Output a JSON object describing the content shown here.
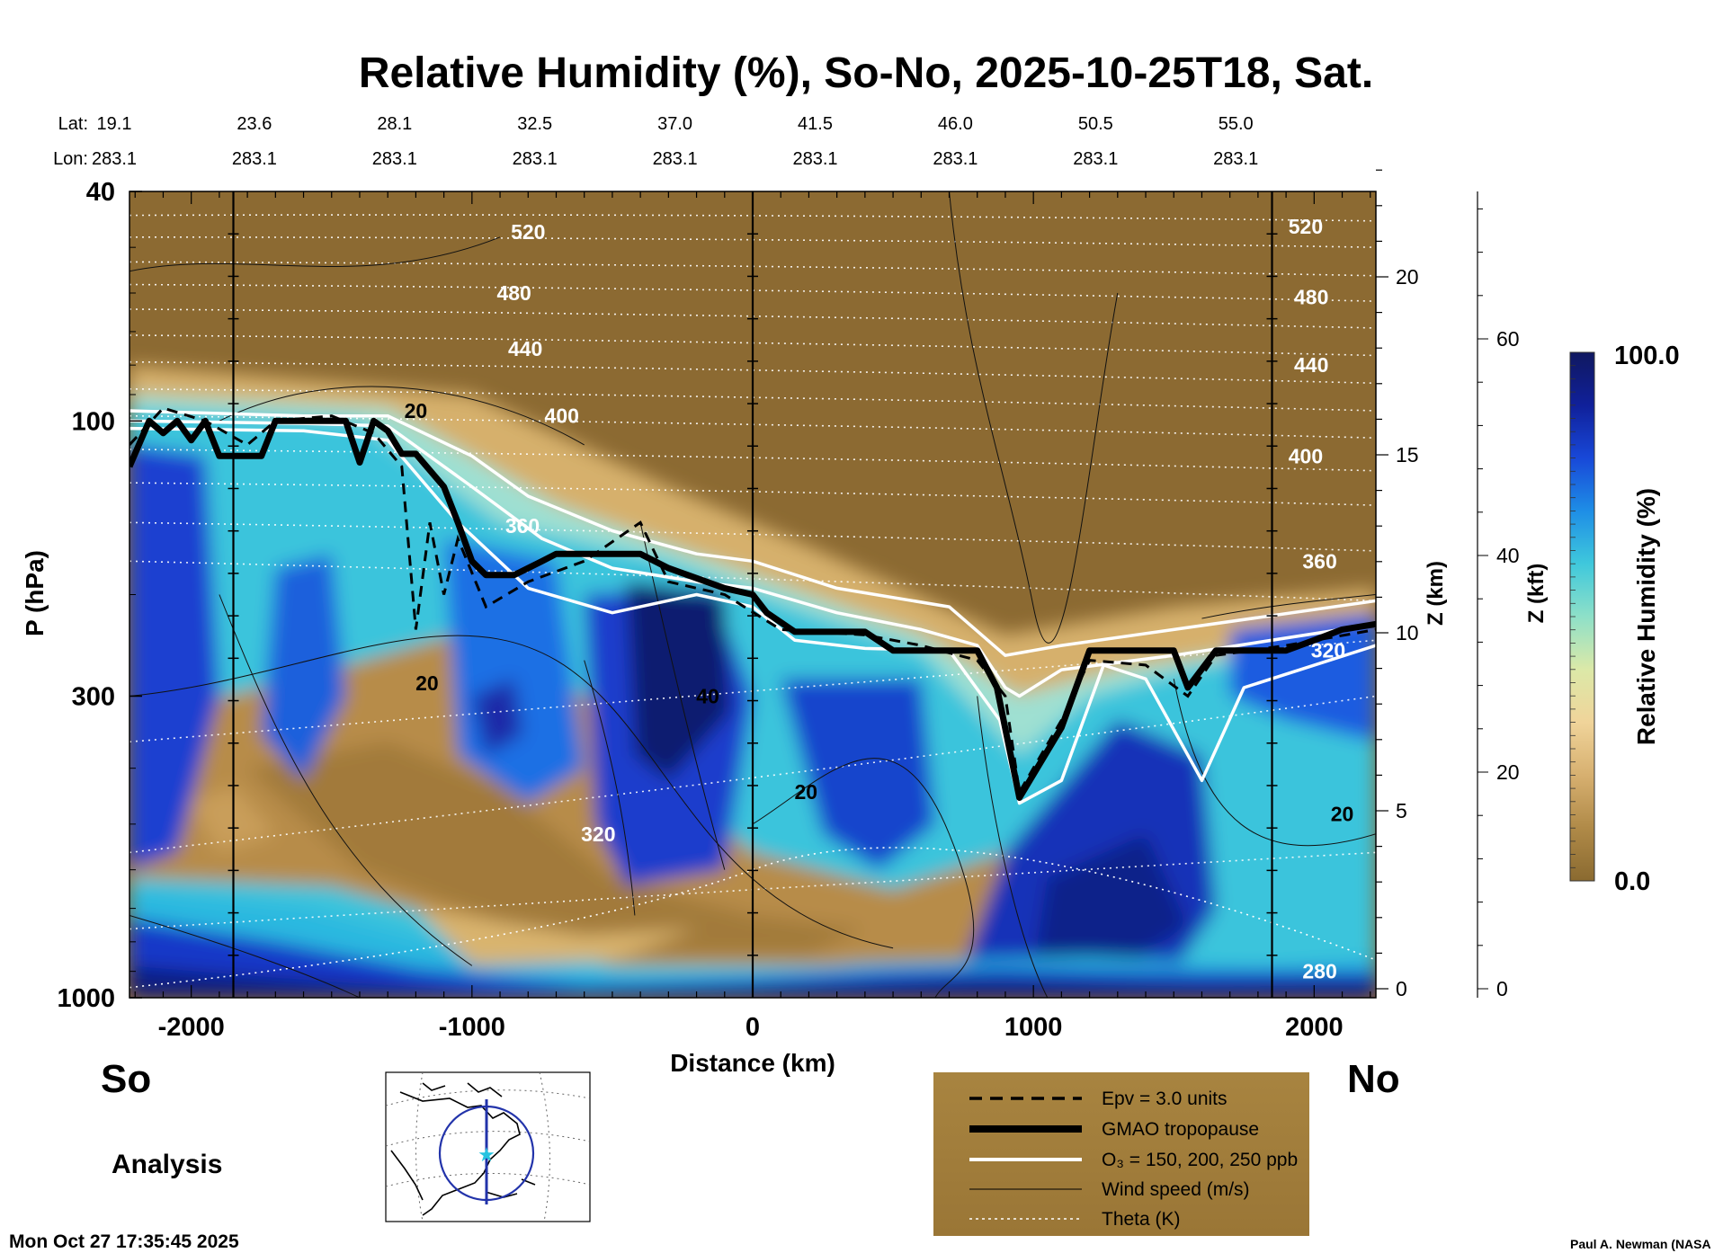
{
  "chart_data": {
    "type": "heatmap",
    "title": "Relative Humidity (%), So-No, 2025-10-25T18, Sat.",
    "xlabel": "Distance (km)",
    "ylabel": "P (hPa)",
    "y2label": "Z (km)",
    "y3label": "Z (kft)",
    "xlim": [
      -2220,
      2220
    ],
    "x_ticks": [
      -2000,
      -1000,
      0,
      1000,
      2000
    ],
    "p_ticks": [
      40,
      100,
      300,
      1000
    ],
    "z_km_ticks": [
      0,
      5,
      10,
      15,
      20
    ],
    "z_kft_ticks": [
      0,
      20,
      40,
      60
    ],
    "lat_label": "Lat:",
    "lon_label": "Lon:",
    "latitudes": [
      "19.1",
      "23.6",
      "28.1",
      "32.5",
      "37.0",
      "41.5",
      "46.0",
      "50.5",
      "55.0"
    ],
    "longitudes": [
      "283.1",
      "283.1",
      "283.1",
      "283.1",
      "283.1",
      "283.1",
      "283.1",
      "283.1",
      "283.1"
    ],
    "colorbar": {
      "label": "Relative Humidity (%)",
      "max_label": "100.0",
      "min_label": "0.0",
      "colors": [
        "#8a6a30",
        "#b08a48",
        "#d7b070",
        "#f0d49a",
        "#dce9a8",
        "#8ee0c8",
        "#3fc8dc",
        "#1e8ee6",
        "#1848d8",
        "#10209a",
        "#101860"
      ]
    },
    "theta_labels": [
      {
        "text": "520",
        "x_km": -800,
        "p": 47
      },
      {
        "text": "480",
        "x_km": -850,
        "p": 60
      },
      {
        "text": "440",
        "x_km": -810,
        "p": 75
      },
      {
        "text": "400",
        "x_km": -680,
        "p": 98
      },
      {
        "text": "360",
        "x_km": -820,
        "p": 152
      },
      {
        "text": "320",
        "x_km": -550,
        "p": 520
      },
      {
        "text": "520",
        "x_km": 1970,
        "p": 46
      },
      {
        "text": "480",
        "x_km": 1990,
        "p": 61
      },
      {
        "text": "440",
        "x_km": 1990,
        "p": 80
      },
      {
        "text": "400",
        "x_km": 1970,
        "p": 115
      },
      {
        "text": "360",
        "x_km": 2020,
        "p": 175
      },
      {
        "text": "320",
        "x_km": 2050,
        "p": 250
      },
      {
        "text": "280",
        "x_km": 2020,
        "p": 900
      }
    ],
    "wind_labels": [
      {
        "text": "20",
        "x_km": -1200,
        "p": 96
      },
      {
        "text": "20",
        "x_km": -1160,
        "p": 285
      },
      {
        "text": "40",
        "x_km": -160,
        "p": 300
      },
      {
        "text": "20",
        "x_km": 190,
        "p": 440
      },
      {
        "text": "20",
        "x_km": 2100,
        "p": 480
      }
    ],
    "tropopause": {
      "x": [
        -2220,
        -2150,
        -2100,
        -2050,
        -2000,
        -1950,
        -1900,
        -1800,
        -1750,
        -1700,
        -1650,
        -1550,
        -1450,
        -1400,
        -1350,
        -1300,
        -1250,
        -1200,
        -1100,
        -1050,
        -1000,
        -950,
        -850,
        -750,
        -700,
        -600,
        -400,
        -300,
        -100,
        0,
        50,
        150,
        400,
        500,
        800,
        870,
        950,
        1100,
        1200,
        1300,
        1500,
        1550,
        1650,
        1800,
        1900,
        2000,
        2100,
        2220
      ],
      "p": [
        120,
        100,
        105,
        100,
        108,
        100,
        115,
        115,
        115,
        100,
        100,
        100,
        100,
        118,
        100,
        104,
        114,
        114,
        130,
        150,
        175,
        185,
        185,
        175,
        170,
        170,
        170,
        180,
        195,
        200,
        215,
        232,
        232,
        250,
        250,
        290,
        450,
        340,
        250,
        250,
        250,
        290,
        250,
        250,
        250,
        240,
        230,
        225
      ]
    },
    "legend": [
      "Epv = 3.0 units",
      "GMAO tropopause",
      "O₃ = 150, 200, 250 ppb",
      "Wind speed (m/s)",
      "Theta (K)"
    ],
    "direction_left": "So",
    "direction_right": "No",
    "mode": "Analysis",
    "timestamp": "Mon Oct 27 17:35:45 2025",
    "credit": "Paul A. Newman (NASA"
  }
}
